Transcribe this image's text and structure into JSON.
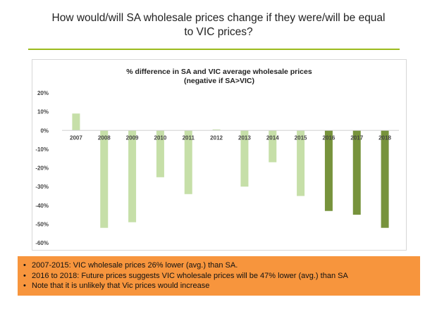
{
  "slide": {
    "title_line1": "How would/will SA wholesale prices change if they were/will be equal",
    "title_line2": "to VIC prices?",
    "rule_color": "#9bbb1e"
  },
  "chart_data": {
    "type": "bar",
    "title_line1": "% difference in SA and VIC average wholesale prices",
    "title_line2": "(negative if SA>VIC)",
    "categories": [
      "2007",
      "2008",
      "2009",
      "2010",
      "2011",
      "2012",
      "2013",
      "2014",
      "2015",
      "2016",
      "2017",
      "2018"
    ],
    "values": [
      9,
      -52,
      -49,
      -25,
      -34,
      0.5,
      -30,
      -17,
      -35,
      -43,
      -45,
      -52
    ],
    "series_colors": [
      "#c6dfa8",
      "#c6dfa8",
      "#c6dfa8",
      "#c6dfa8",
      "#c6dfa8",
      "#c6dfa8",
      "#c6dfa8",
      "#c6dfa8",
      "#c6dfa8",
      "#77933c",
      "#77933c",
      "#77933c"
    ],
    "yticks": [
      "20%",
      "10%",
      "0%",
      "-10%",
      "-20%",
      "-30%",
      "-40%",
      "-50%",
      "-60%"
    ],
    "ylim": [
      -60,
      20
    ],
    "grid": false,
    "legend": "none"
  },
  "notes": {
    "items": [
      "2007-2015: VIC wholesale prices 26% lower (avg.)  than SA.",
      "2016 to 2018: Future prices suggests VIC wholesale prices will be 47% lower (avg.) than SA",
      "Note that it is unlikely that Vic prices would increase"
    ],
    "background": "#f7953d"
  }
}
